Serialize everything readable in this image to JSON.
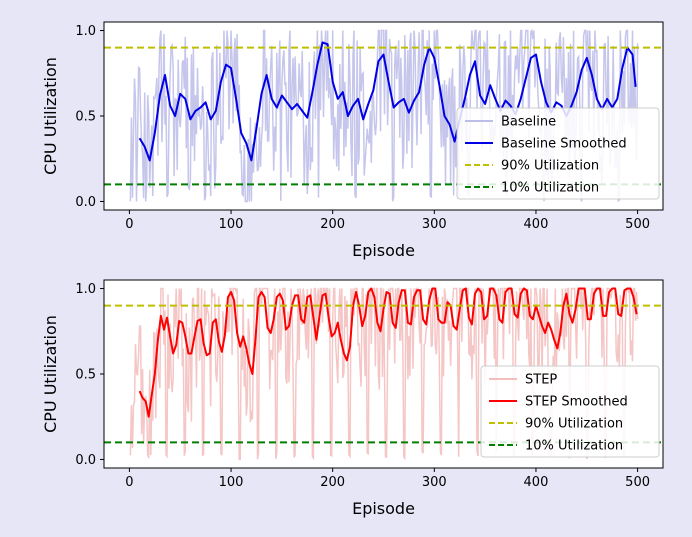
{
  "figure": {
    "background": "#e6e6f7"
  },
  "chart_data": [
    {
      "type": "line",
      "xlabel": "Episode",
      "ylabel": "CPU Utilization",
      "xlim": [
        -25,
        525
      ],
      "ylim": [
        -0.05,
        1.05
      ],
      "xticks": [
        0,
        100,
        200,
        300,
        400,
        500
      ],
      "xtick_labels": [
        "0",
        "100",
        "200",
        "300",
        "400",
        "500"
      ],
      "yticks": [
        0.0,
        0.5,
        1.0
      ],
      "ytick_labels": [
        "0.0",
        "0.5",
        "1.0"
      ],
      "grid": false,
      "legend": {
        "position": "lower-right"
      },
      "series": [
        {
          "name": "Baseline",
          "color": "#b3b3e6",
          "kind": "raw",
          "pattern": {
            "x_start": 1,
            "x_end": 500,
            "period": 37,
            "episode_start": 5,
            "start_level": 0.35,
            "peak_level": 0.8,
            "drop_min": 0.0,
            "noise_range": 0.45
          }
        },
        {
          "name": "Baseline Smoothed",
          "color": "#0000e6",
          "kind": "smoothed",
          "x": [
            10,
            15,
            20,
            25,
            30,
            35,
            40,
            45,
            50,
            55,
            60,
            65,
            70,
            75,
            80,
            85,
            90,
            95,
            100,
            105,
            110,
            115,
            120,
            125,
            130,
            135,
            140,
            145,
            150,
            155,
            160,
            165,
            170,
            175,
            180,
            185,
            190,
            195,
            200,
            205,
            210,
            215,
            220,
            225,
            230,
            235,
            240,
            245,
            250,
            255,
            260,
            265,
            270,
            275,
            280,
            285,
            290,
            295,
            300,
            305,
            310,
            315,
            320,
            325,
            330,
            335,
            340,
            345,
            350,
            355,
            360,
            365,
            370,
            375,
            380,
            385,
            390,
            395,
            400,
            405,
            410,
            415,
            420,
            425,
            430,
            435,
            440,
            445,
            450,
            455,
            460,
            465,
            470,
            475,
            480,
            485,
            490,
            495,
            498
          ],
          "y": [
            0.37,
            0.32,
            0.24,
            0.4,
            0.62,
            0.74,
            0.56,
            0.5,
            0.63,
            0.6,
            0.48,
            0.53,
            0.55,
            0.58,
            0.48,
            0.53,
            0.7,
            0.8,
            0.78,
            0.6,
            0.4,
            0.34,
            0.24,
            0.43,
            0.63,
            0.74,
            0.6,
            0.55,
            0.62,
            0.58,
            0.54,
            0.57,
            0.53,
            0.49,
            0.64,
            0.8,
            0.93,
            0.92,
            0.7,
            0.6,
            0.64,
            0.5,
            0.56,
            0.6,
            0.48,
            0.57,
            0.65,
            0.82,
            0.86,
            0.7,
            0.55,
            0.58,
            0.6,
            0.52,
            0.59,
            0.64,
            0.8,
            0.9,
            0.84,
            0.68,
            0.5,
            0.45,
            0.35,
            0.48,
            0.6,
            0.74,
            0.82,
            0.62,
            0.57,
            0.68,
            0.6,
            0.53,
            0.59,
            0.56,
            0.51,
            0.6,
            0.72,
            0.84,
            0.86,
            0.7,
            0.58,
            0.52,
            0.58,
            0.56,
            0.5,
            0.56,
            0.64,
            0.77,
            0.84,
            0.74,
            0.6,
            0.54,
            0.6,
            0.55,
            0.6,
            0.78,
            0.9,
            0.86,
            0.67
          ]
        },
        {
          "name": "90% Utilization",
          "color": "#bfbf00",
          "kind": "hline",
          "y": 0.9
        },
        {
          "name": "10% Utilization",
          "color": "#008000",
          "kind": "hline",
          "y": 0.1
        }
      ]
    },
    {
      "type": "line",
      "xlabel": "Episode",
      "ylabel": "CPU Utilization",
      "xlim": [
        -25,
        525
      ],
      "ylim": [
        -0.05,
        1.05
      ],
      "xticks": [
        0,
        100,
        200,
        300,
        400,
        500
      ],
      "xtick_labels": [
        "0",
        "100",
        "200",
        "300",
        "400",
        "500"
      ],
      "yticks": [
        0.0,
        0.5,
        1.0
      ],
      "ytick_labels": [
        "0.0",
        "0.5",
        "1.0"
      ],
      "grid": false,
      "legend": {
        "position": "lower-right"
      },
      "series": [
        {
          "name": "STEP",
          "color": "#f2b3b3",
          "kind": "raw",
          "pattern": {
            "x_start": 1,
            "x_end": 500,
            "period": 18,
            "episode_start": 5,
            "start_level": 0.35,
            "peak_level": 1.0,
            "drop_min": 0.0,
            "noise_range": 0.4
          }
        },
        {
          "name": "STEP Smoothed",
          "color": "#ff0000",
          "kind": "smoothed",
          "x": [
            10,
            13,
            16,
            19,
            22,
            25,
            28,
            31,
            34,
            37,
            40,
            43,
            46,
            49,
            52,
            55,
            58,
            61,
            64,
            67,
            70,
            73,
            76,
            79,
            82,
            85,
            88,
            91,
            94,
            97,
            100,
            103,
            106,
            109,
            112,
            115,
            118,
            121,
            124,
            127,
            130,
            133,
            136,
            139,
            142,
            145,
            148,
            151,
            154,
            157,
            160,
            163,
            166,
            169,
            172,
            175,
            178,
            181,
            184,
            187,
            190,
            193,
            196,
            199,
            202,
            205,
            208,
            211,
            214,
            217,
            220,
            223,
            226,
            229,
            232,
            235,
            238,
            241,
            244,
            247,
            250,
            253,
            256,
            259,
            262,
            265,
            268,
            271,
            274,
            277,
            280,
            283,
            286,
            289,
            292,
            295,
            298,
            301,
            304,
            307,
            310,
            313,
            316,
            319,
            322,
            325,
            328,
            331,
            334,
            337,
            340,
            343,
            346,
            349,
            352,
            355,
            358,
            361,
            364,
            367,
            370,
            373,
            376,
            379,
            382,
            385,
            388,
            391,
            394,
            397,
            400,
            403,
            406,
            409,
            412,
            415,
            418,
            421,
            424,
            427,
            430,
            433,
            436,
            439,
            442,
            445,
            448,
            451,
            454,
            457,
            460,
            463,
            466,
            469,
            472,
            475,
            478,
            481,
            484,
            487,
            490,
            493,
            496,
            499
          ],
          "y": [
            0.4,
            0.36,
            0.34,
            0.25,
            0.38,
            0.5,
            0.7,
            0.84,
            0.76,
            0.83,
            0.72,
            0.62,
            0.67,
            0.81,
            0.8,
            0.72,
            0.62,
            0.62,
            0.72,
            0.81,
            0.82,
            0.68,
            0.61,
            0.62,
            0.8,
            0.82,
            0.69,
            0.63,
            0.73,
            0.95,
            0.98,
            0.93,
            0.74,
            0.66,
            0.72,
            0.65,
            0.56,
            0.5,
            0.7,
            0.95,
            0.98,
            0.95,
            0.77,
            0.74,
            0.82,
            0.95,
            0.97,
            0.93,
            0.76,
            0.78,
            0.9,
            0.96,
            0.96,
            0.82,
            0.8,
            0.95,
            0.96,
            0.83,
            0.7,
            0.84,
            0.96,
            0.97,
            0.83,
            0.72,
            0.74,
            0.8,
            0.7,
            0.62,
            0.58,
            0.66,
            0.9,
            0.98,
            0.9,
            0.78,
            0.84,
            0.98,
            1.0,
            0.95,
            0.8,
            0.75,
            0.88,
            0.98,
            0.97,
            0.8,
            0.77,
            0.92,
            0.99,
            0.99,
            0.8,
            0.79,
            0.95,
            0.99,
            0.99,
            0.82,
            0.79,
            0.93,
            1.0,
            1.0,
            0.82,
            0.8,
            0.8,
            0.92,
            0.9,
            0.78,
            0.76,
            0.88,
            0.99,
            1.0,
            0.83,
            0.79,
            0.97,
            1.0,
            0.98,
            0.82,
            0.84,
            1.0,
            1.0,
            0.96,
            0.82,
            0.8,
            0.98,
            1.0,
            1.0,
            0.85,
            0.83,
            0.97,
            1.0,
            0.99,
            0.84,
            0.82,
            0.9,
            0.84,
            0.78,
            0.74,
            0.8,
            0.76,
            0.7,
            0.65,
            0.74,
            0.9,
            0.97,
            0.85,
            0.8,
            0.88,
            1.0,
            1.0,
            1.0,
            0.82,
            0.82,
            0.97,
            1.0,
            1.0,
            0.84,
            0.84,
            0.98,
            1.0,
            1.0,
            0.85,
            0.84,
            0.99,
            1.0,
            1.0,
            0.95,
            0.85
          ]
        },
        {
          "name": "90% Utilization",
          "color": "#bfbf00",
          "kind": "hline",
          "y": 0.9
        },
        {
          "name": "10% Utilization",
          "color": "#008000",
          "kind": "hline",
          "y": 0.1
        }
      ]
    }
  ]
}
